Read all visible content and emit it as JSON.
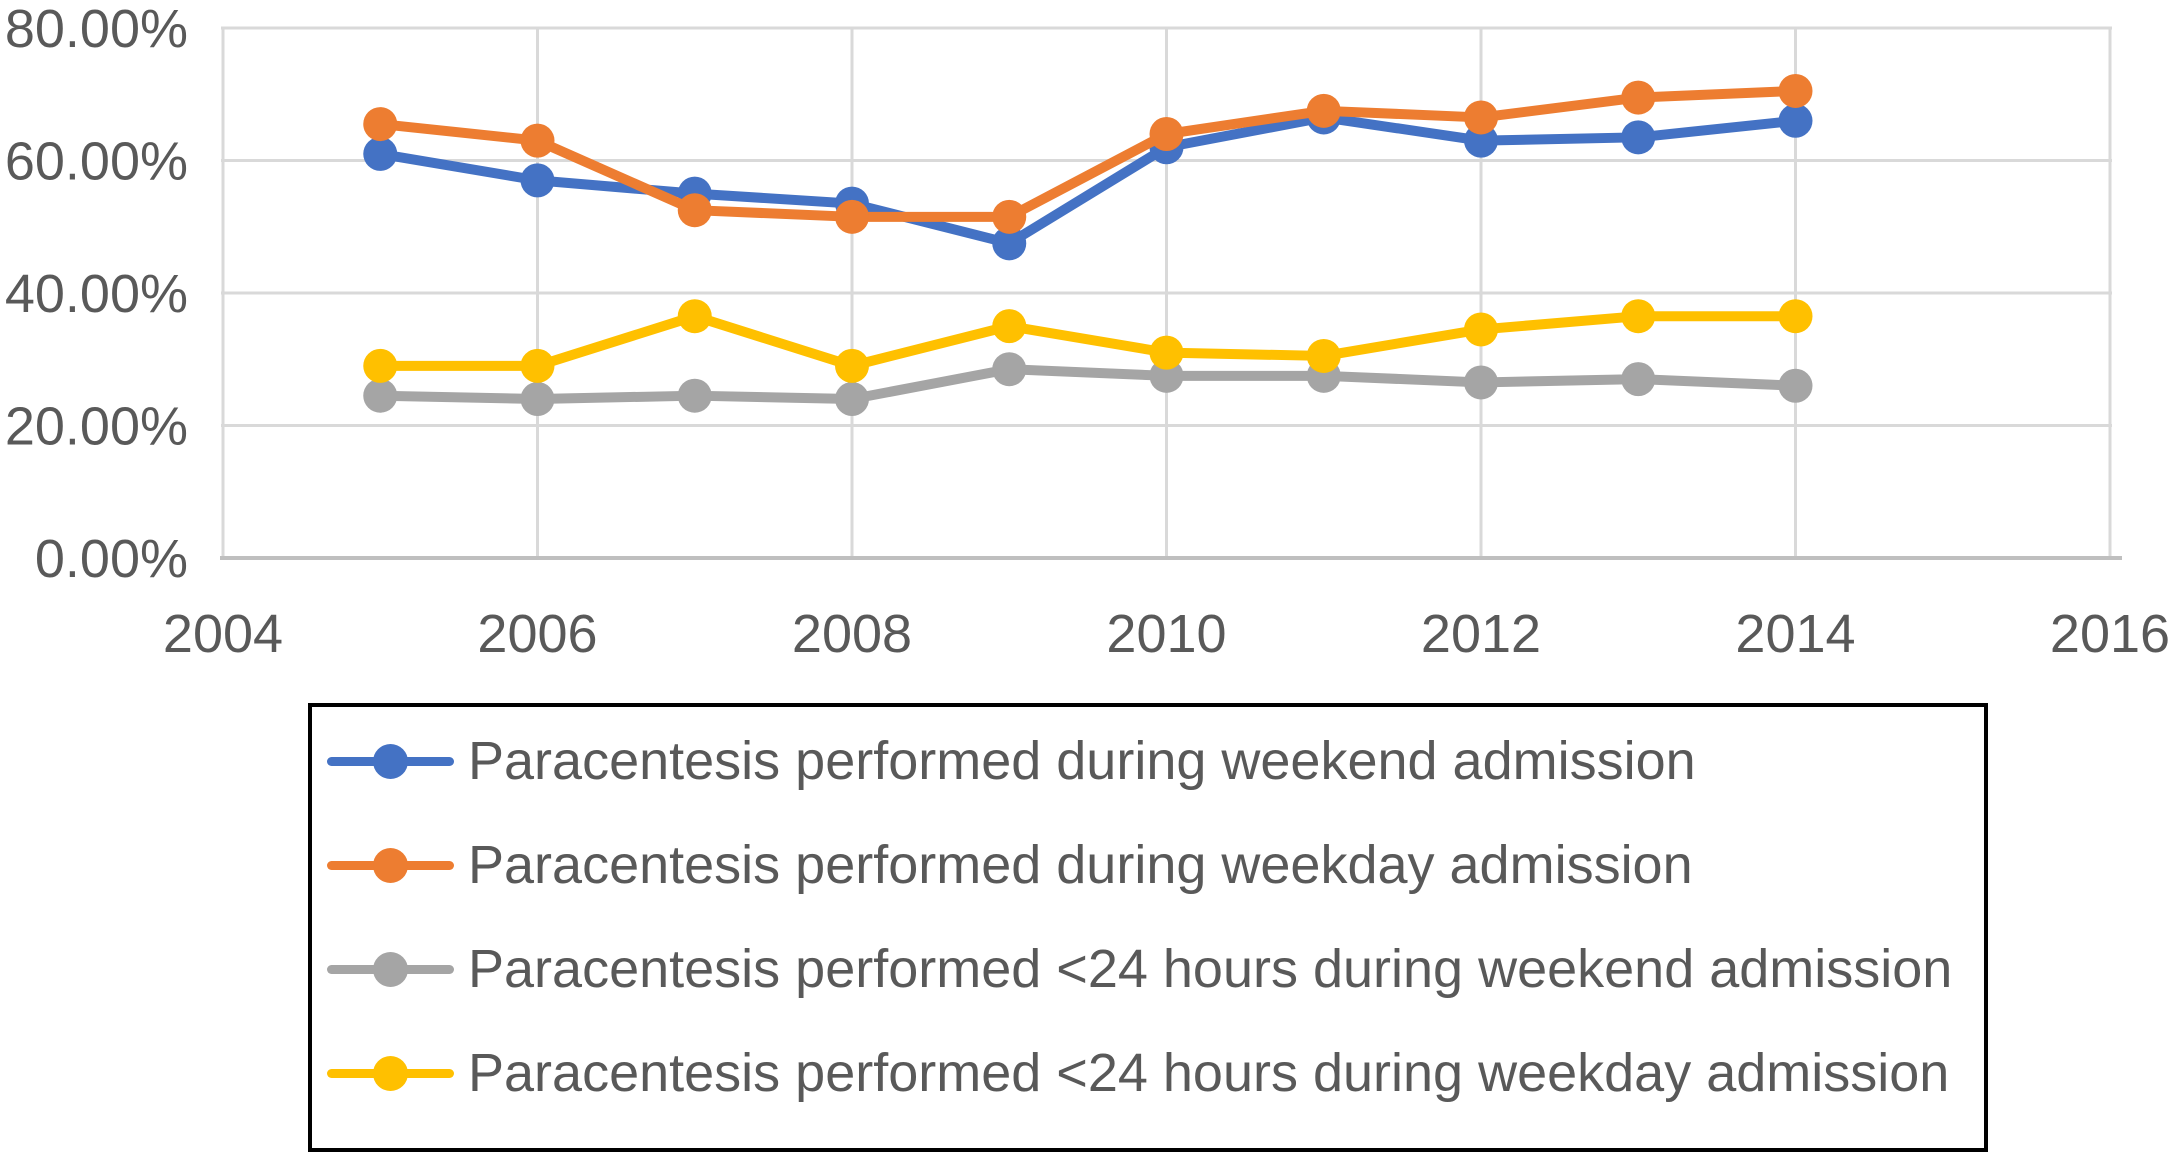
{
  "chart_data": {
    "type": "line",
    "x": [
      2005,
      2006,
      2007,
      2008,
      2009,
      2010,
      2011,
      2012,
      2013,
      2014
    ],
    "series": [
      {
        "id": "weekend-admission",
        "name": "Paracentesis performed during weekend admission",
        "color": "#4472C4",
        "values": [
          61.0,
          57.0,
          55.0,
          53.5,
          47.5,
          62.0,
          66.5,
          63.0,
          63.5,
          66.0
        ]
      },
      {
        "id": "weekday-admission",
        "name": "Paracentesis performed during weekday admission",
        "color": "#ED7D31",
        "values": [
          65.5,
          63.0,
          52.5,
          51.5,
          51.5,
          64.0,
          67.5,
          66.5,
          69.5,
          70.5
        ]
      },
      {
        "id": "under-24h-weekend-admission",
        "name": "Paracentesis performed <24 hours during weekend admission",
        "color": "#A5A5A5",
        "values": [
          24.5,
          24.0,
          24.5,
          24.0,
          28.5,
          27.5,
          27.5,
          26.5,
          27.0,
          26.0
        ]
      },
      {
        "id": "under-24h-weekday-admission",
        "name": "Paracentesis performed <24 hours during weekday admission",
        "color": "#FFC000",
        "values": [
          29.0,
          29.0,
          36.5,
          29.0,
          35.0,
          31.0,
          30.5,
          34.5,
          36.5,
          36.5
        ]
      }
    ],
    "title": "",
    "xlabel": "",
    "ylabel": "",
    "xlim": [
      2004,
      2016
    ],
    "ylim": [
      0,
      80
    ],
    "x_tick_values": [
      2004,
      2006,
      2008,
      2010,
      2012,
      2014,
      2016
    ],
    "x_tick_labels": [
      "2004",
      "2006",
      "2008",
      "2010",
      "2012",
      "2014",
      "2016"
    ],
    "y_tick_values": [
      80,
      60,
      40,
      20,
      0
    ],
    "y_tick_labels": [
      "80.00%",
      "60.00%",
      "40.00%",
      "20.00%",
      "0.00%"
    ],
    "grid": true,
    "marker": "circle",
    "legend_position": "bottom-box"
  },
  "style": {
    "background_color": "#FFFFFF",
    "gridline_color": "#D9D9D9",
    "axis_line_color": "#BFBFBF",
    "tick_label_color": "#595959",
    "legend_text_color": "#595959",
    "legend_border_color": "#000000"
  }
}
